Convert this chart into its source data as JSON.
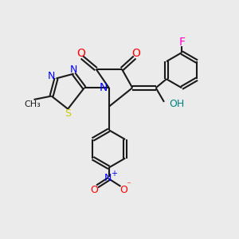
{
  "background_color": "#ebebeb",
  "bond_color": "#1a1a1a",
  "atom_colors": {
    "N": "#0000ff",
    "O": "#ff0000",
    "S": "#cccc00",
    "F": "#ff00cc",
    "OH": "#008080",
    "C": "#1a1a1a"
  },
  "figsize": [
    3.0,
    3.0
  ],
  "dpi": 100
}
